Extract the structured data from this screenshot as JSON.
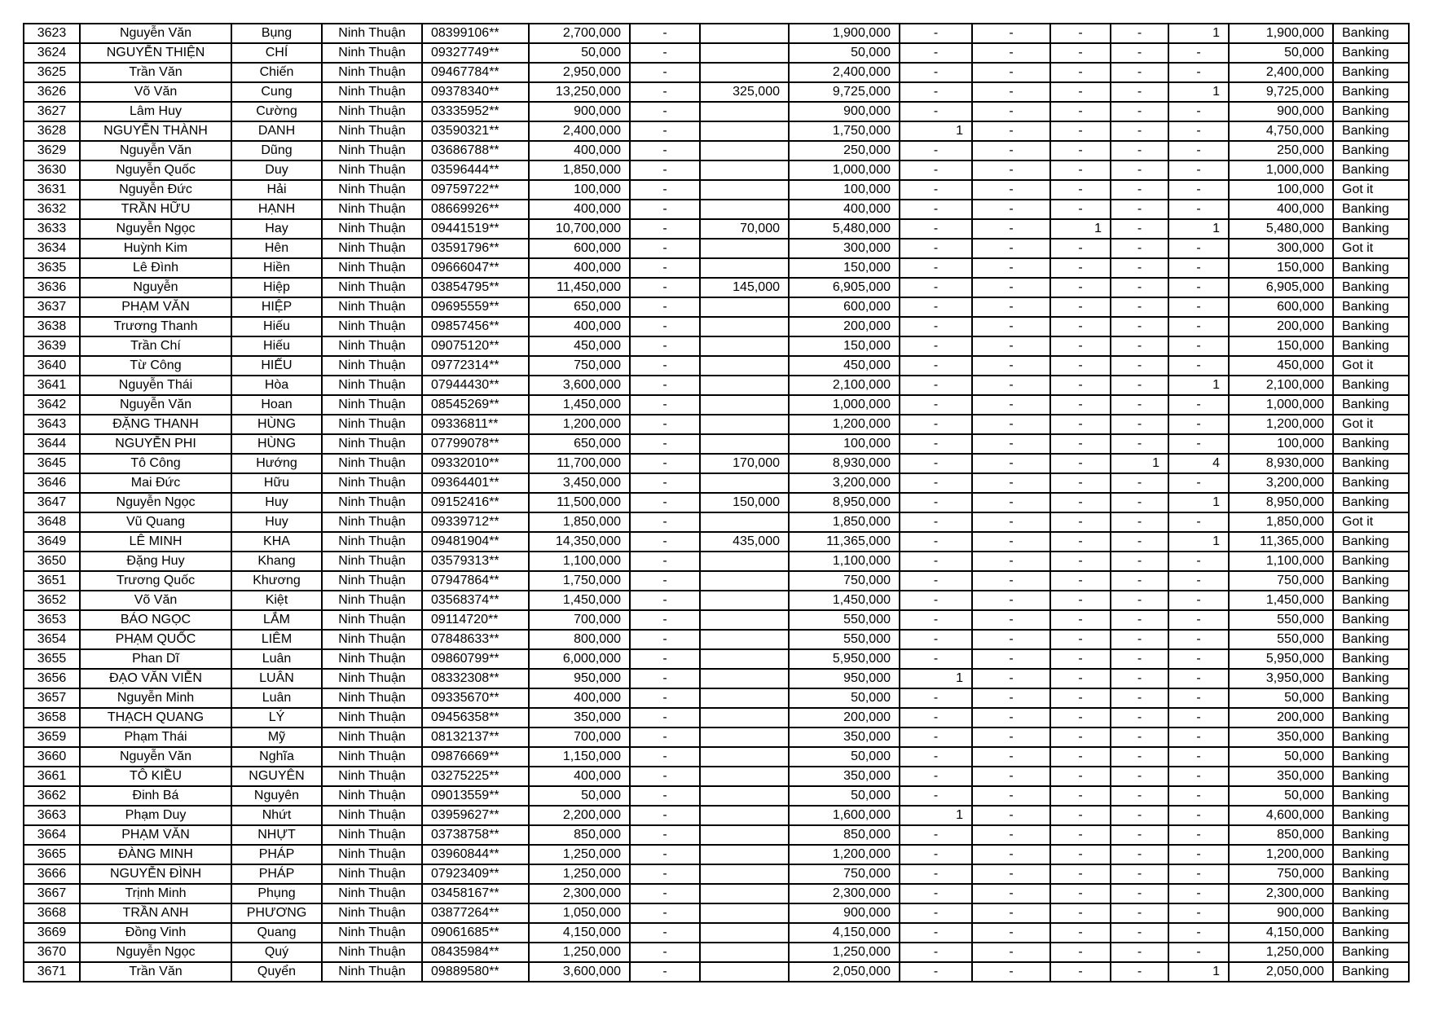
{
  "columns": [
    "no",
    "family_name",
    "given_name",
    "province",
    "phone",
    "amount_1",
    "col_dash",
    "deduction",
    "amount_2",
    "c1",
    "c2",
    "c3",
    "c4",
    "c5",
    "total",
    "method"
  ],
  "rows": [
    [
      "3623",
      "Nguyễn Văn",
      "Bụng",
      "Ninh Thuận",
      "08399106**",
      "2,700,000",
      "-",
      "",
      "1,900,000",
      "-",
      "-",
      "-",
      "-",
      "1",
      "1,900,000",
      "Banking"
    ],
    [
      "3624",
      "NGUYỄN THIỆN",
      "CHÍ",
      "Ninh Thuận",
      "09327749**",
      "50,000",
      "-",
      "",
      "50,000",
      "-",
      "-",
      "-",
      "-",
      "-",
      "50,000",
      "Banking"
    ],
    [
      "3625",
      "Trần Văn",
      "Chiến",
      "Ninh Thuận",
      "09467784**",
      "2,950,000",
      "-",
      "",
      "2,400,000",
      "-",
      "-",
      "-",
      "-",
      "-",
      "2,400,000",
      "Banking"
    ],
    [
      "3626",
      "Võ Văn",
      "Cung",
      "Ninh Thuận",
      "09378340**",
      "13,250,000",
      "-",
      "325,000",
      "9,725,000",
      "-",
      "-",
      "-",
      "-",
      "1",
      "9,725,000",
      "Banking"
    ],
    [
      "3627",
      "Lâm Huy",
      "Cường",
      "Ninh Thuận",
      "03335952**",
      "900,000",
      "-",
      "",
      "900,000",
      "-",
      "-",
      "-",
      "-",
      "-",
      "900,000",
      "Banking"
    ],
    [
      "3628",
      "NGUYỄN THÀNH",
      "DANH",
      "Ninh Thuận",
      "03590321**",
      "2,400,000",
      "-",
      "",
      "1,750,000",
      "1",
      "-",
      "-",
      "-",
      "-",
      "4,750,000",
      "Banking"
    ],
    [
      "3629",
      "Nguyễn Văn",
      "Dũng",
      "Ninh Thuận",
      "03686788**",
      "400,000",
      "-",
      "",
      "250,000",
      "-",
      "-",
      "-",
      "-",
      "-",
      "250,000",
      "Banking"
    ],
    [
      "3630",
      "Nguyễn Quốc",
      "Duy",
      "Ninh Thuận",
      "03596444**",
      "1,850,000",
      "-",
      "",
      "1,000,000",
      "-",
      "-",
      "-",
      "-",
      "-",
      "1,000,000",
      "Banking"
    ],
    [
      "3631",
      "Nguyễn Đức",
      "Hải",
      "Ninh Thuận",
      "09759722**",
      "100,000",
      "-",
      "",
      "100,000",
      "-",
      "-",
      "-",
      "-",
      "-",
      "100,000",
      "Got it"
    ],
    [
      "3632",
      "TRẦN HỮU",
      "HẠNH",
      "Ninh Thuận",
      "08669926**",
      "400,000",
      "-",
      "",
      "400,000",
      "-",
      "-",
      "-",
      "-",
      "-",
      "400,000",
      "Banking"
    ],
    [
      "3633",
      "Nguyễn Ngọc",
      "Hay",
      "Ninh Thuận",
      "09441519**",
      "10,700,000",
      "-",
      "70,000",
      "5,480,000",
      "-",
      "-",
      "1",
      "-",
      "1",
      "5,480,000",
      "Banking"
    ],
    [
      "3634",
      "Huỳnh Kim",
      "Hên",
      "Ninh Thuận",
      "03591796**",
      "600,000",
      "-",
      "",
      "300,000",
      "-",
      "-",
      "-",
      "-",
      "-",
      "300,000",
      "Got it"
    ],
    [
      "3635",
      "Lê Đình",
      "Hiền",
      "Ninh Thuận",
      "09666047**",
      "400,000",
      "-",
      "",
      "150,000",
      "-",
      "-",
      "-",
      "-",
      "-",
      "150,000",
      "Banking"
    ],
    [
      "3636",
      "Nguyễn",
      "Hiệp",
      "Ninh Thuận",
      "03854795**",
      "11,450,000",
      "-",
      "145,000",
      "6,905,000",
      "-",
      "-",
      "-",
      "-",
      "-",
      "6,905,000",
      "Banking"
    ],
    [
      "3637",
      "PHẠM VĂN",
      "HIỆP",
      "Ninh Thuận",
      "09695559**",
      "650,000",
      "-",
      "",
      "600,000",
      "-",
      "-",
      "-",
      "-",
      "-",
      "600,000",
      "Banking"
    ],
    [
      "3638",
      "Trương Thanh",
      "Hiếu",
      "Ninh Thuận",
      "09857456**",
      "400,000",
      "-",
      "",
      "200,000",
      "-",
      "-",
      "-",
      "-",
      "-",
      "200,000",
      "Banking"
    ],
    [
      "3639",
      "Trần Chí",
      "Hiếu",
      "Ninh Thuận",
      "09075120**",
      "450,000",
      "-",
      "",
      "150,000",
      "-",
      "-",
      "-",
      "-",
      "-",
      "150,000",
      "Banking"
    ],
    [
      "3640",
      "Từ Công",
      "HIẾU",
      "Ninh Thuận",
      "09772314**",
      "750,000",
      "-",
      "",
      "450,000",
      "-",
      "-",
      "-",
      "-",
      "-",
      "450,000",
      "Got it"
    ],
    [
      "3641",
      "Nguyễn Thái",
      "Hòa",
      "Ninh Thuận",
      "07944430**",
      "3,600,000",
      "-",
      "",
      "2,100,000",
      "-",
      "-",
      "-",
      "-",
      "1",
      "2,100,000",
      "Banking"
    ],
    [
      "3642",
      "Nguyễn Văn",
      "Hoan",
      "Ninh Thuận",
      "08545269**",
      "1,450,000",
      "-",
      "",
      "1,000,000",
      "-",
      "-",
      "-",
      "-",
      "-",
      "1,000,000",
      "Banking"
    ],
    [
      "3643",
      "ĐẶNG THANH",
      "HÙNG",
      "Ninh Thuận",
      "09336811**",
      "1,200,000",
      "-",
      "",
      "1,200,000",
      "-",
      "-",
      "-",
      "-",
      "-",
      "1,200,000",
      "Got it"
    ],
    [
      "3644",
      "NGUYỄN PHI",
      "HÙNG",
      "Ninh Thuận",
      "07799078**",
      "650,000",
      "-",
      "",
      "100,000",
      "-",
      "-",
      "-",
      "-",
      "-",
      "100,000",
      "Banking"
    ],
    [
      "3645",
      "Tô Công",
      "Hướng",
      "Ninh Thuận",
      "09332010**",
      "11,700,000",
      "-",
      "170,000",
      "8,930,000",
      "-",
      "-",
      "-",
      "1",
      "4",
      "8,930,000",
      "Banking"
    ],
    [
      "3646",
      "Mai Đức",
      "Hữu",
      "Ninh Thuận",
      "09364401**",
      "3,450,000",
      "-",
      "",
      "3,200,000",
      "-",
      "-",
      "-",
      "-",
      "-",
      "3,200,000",
      "Banking"
    ],
    [
      "3647",
      "Nguyễn Ngọc",
      "Huy",
      "Ninh Thuận",
      "09152416**",
      "11,500,000",
      "-",
      "150,000",
      "8,950,000",
      "-",
      "-",
      "-",
      "-",
      "1",
      "8,950,000",
      "Banking"
    ],
    [
      "3648",
      "Vũ Quang",
      "Huy",
      "Ninh Thuận",
      "09339712**",
      "1,850,000",
      "-",
      "",
      "1,850,000",
      "-",
      "-",
      "-",
      "-",
      "-",
      "1,850,000",
      "Got it"
    ],
    [
      "3649",
      "LÊ MINH",
      "KHA",
      "Ninh Thuận",
      "09481904**",
      "14,350,000",
      "-",
      "435,000",
      "11,365,000",
      "-",
      "-",
      "-",
      "-",
      "1",
      "11,365,000",
      "Banking"
    ],
    [
      "3650",
      "Đặng Huy",
      "Khang",
      "Ninh Thuận",
      "03579313**",
      "1,100,000",
      "-",
      "",
      "1,100,000",
      "-",
      "-",
      "-",
      "-",
      "-",
      "1,100,000",
      "Banking"
    ],
    [
      "3651",
      "Trương Quốc",
      "Khương",
      "Ninh Thuận",
      "07947864**",
      "1,750,000",
      "-",
      "",
      "750,000",
      "-",
      "-",
      "-",
      "-",
      "-",
      "750,000",
      "Banking"
    ],
    [
      "3652",
      "Võ Văn",
      "Kiệt",
      "Ninh Thuận",
      "03568374**",
      "1,450,000",
      "-",
      "",
      "1,450,000",
      "-",
      "-",
      "-",
      "-",
      "-",
      "1,450,000",
      "Banking"
    ],
    [
      "3653",
      "BÁO NGỌC",
      "LẮM",
      "Ninh Thuận",
      "09114720**",
      "700,000",
      "-",
      "",
      "550,000",
      "-",
      "-",
      "-",
      "-",
      "-",
      "550,000",
      "Banking"
    ],
    [
      "3654",
      "PHẠM QUỐC",
      "LIÊM",
      "Ninh Thuận",
      "07848633**",
      "800,000",
      "-",
      "",
      "550,000",
      "-",
      "-",
      "-",
      "-",
      "-",
      "550,000",
      "Banking"
    ],
    [
      "3655",
      "Phan Dĩ",
      "Luân",
      "Ninh Thuận",
      "09860799**",
      "6,000,000",
      "-",
      "",
      "5,950,000",
      "-",
      "-",
      "-",
      "-",
      "-",
      "5,950,000",
      "Banking"
    ],
    [
      "3656",
      "ĐẠO VĂN VIỄN",
      "LUÂN",
      "Ninh Thuận",
      "08332308**",
      "950,000",
      "-",
      "",
      "950,000",
      "1",
      "-",
      "-",
      "-",
      "-",
      "3,950,000",
      "Banking"
    ],
    [
      "3657",
      "Nguyễn Minh",
      "Luân",
      "Ninh Thuận",
      "09335670**",
      "400,000",
      "-",
      "",
      "50,000",
      "-",
      "-",
      "-",
      "-",
      "-",
      "50,000",
      "Banking"
    ],
    [
      "3658",
      "THẠCH QUANG",
      "LÝ",
      "Ninh Thuận",
      "09456358**",
      "350,000",
      "-",
      "",
      "200,000",
      "-",
      "-",
      "-",
      "-",
      "-",
      "200,000",
      "Banking"
    ],
    [
      "3659",
      "Phạm Thái",
      "Mỹ",
      "Ninh Thuận",
      "08132137**",
      "700,000",
      "-",
      "",
      "350,000",
      "-",
      "-",
      "-",
      "-",
      "-",
      "350,000",
      "Banking"
    ],
    [
      "3660",
      "Nguyễn Văn",
      "Nghĩa",
      "Ninh Thuận",
      "09876669**",
      "1,150,000",
      "-",
      "",
      "50,000",
      "-",
      "-",
      "-",
      "-",
      "-",
      "50,000",
      "Banking"
    ],
    [
      "3661",
      "TÔ KIỀU",
      "NGUYÊN",
      "Ninh Thuận",
      "03275225**",
      "400,000",
      "-",
      "",
      "350,000",
      "-",
      "-",
      "-",
      "-",
      "-",
      "350,000",
      "Banking"
    ],
    [
      "3662",
      "Đinh Bá",
      "Nguyên",
      "Ninh Thuận",
      "09013559**",
      "50,000",
      "-",
      "",
      "50,000",
      "-",
      "-",
      "-",
      "-",
      "-",
      "50,000",
      "Banking"
    ],
    [
      "3663",
      "Phạm Duy",
      "Nhứt",
      "Ninh Thuận",
      "03959627**",
      "2,200,000",
      "-",
      "",
      "1,600,000",
      "1",
      "-",
      "-",
      "-",
      "-",
      "4,600,000",
      "Banking"
    ],
    [
      "3664",
      "PHẠM VĂN",
      "NHỰT",
      "Ninh Thuận",
      "03738758**",
      "850,000",
      "-",
      "",
      "850,000",
      "-",
      "-",
      "-",
      "-",
      "-",
      "850,000",
      "Banking"
    ],
    [
      "3665",
      "ĐÀNG MINH",
      "PHÁP",
      "Ninh Thuận",
      "03960844**",
      "1,250,000",
      "-",
      "",
      "1,200,000",
      "-",
      "-",
      "-",
      "-",
      "-",
      "1,200,000",
      "Banking"
    ],
    [
      "3666",
      "NGUYỄN ĐÌNH",
      "PHÁP",
      "Ninh Thuận",
      "07923409**",
      "1,250,000",
      "-",
      "",
      "750,000",
      "-",
      "-",
      "-",
      "-",
      "-",
      "750,000",
      "Banking"
    ],
    [
      "3667",
      "Trịnh Minh",
      "Phụng",
      "Ninh Thuận",
      "03458167**",
      "2,300,000",
      "-",
      "",
      "2,300,000",
      "-",
      "-",
      "-",
      "-",
      "-",
      "2,300,000",
      "Banking"
    ],
    [
      "3668",
      "TRẦN ANH",
      "PHƯƠNG",
      "Ninh Thuận",
      "03877264**",
      "1,050,000",
      "-",
      "",
      "900,000",
      "-",
      "-",
      "-",
      "-",
      "-",
      "900,000",
      "Banking"
    ],
    [
      "3669",
      "Đồng Vinh",
      "Quang",
      "Ninh Thuận",
      "09061685**",
      "4,150,000",
      "-",
      "",
      "4,150,000",
      "-",
      "-",
      "-",
      "-",
      "-",
      "4,150,000",
      "Banking"
    ],
    [
      "3670",
      "Nguyễn Ngọc",
      "Quý",
      "Ninh Thuận",
      "08435984**",
      "1,250,000",
      "-",
      "",
      "1,250,000",
      "-",
      "-",
      "-",
      "-",
      "-",
      "1,250,000",
      "Banking"
    ],
    [
      "3671",
      "Trần Văn",
      "Quyển",
      "Ninh Thuận",
      "09889580**",
      "3,600,000",
      "-",
      "",
      "2,050,000",
      "-",
      "-",
      "-",
      "-",
      "1",
      "2,050,000",
      "Banking"
    ]
  ]
}
